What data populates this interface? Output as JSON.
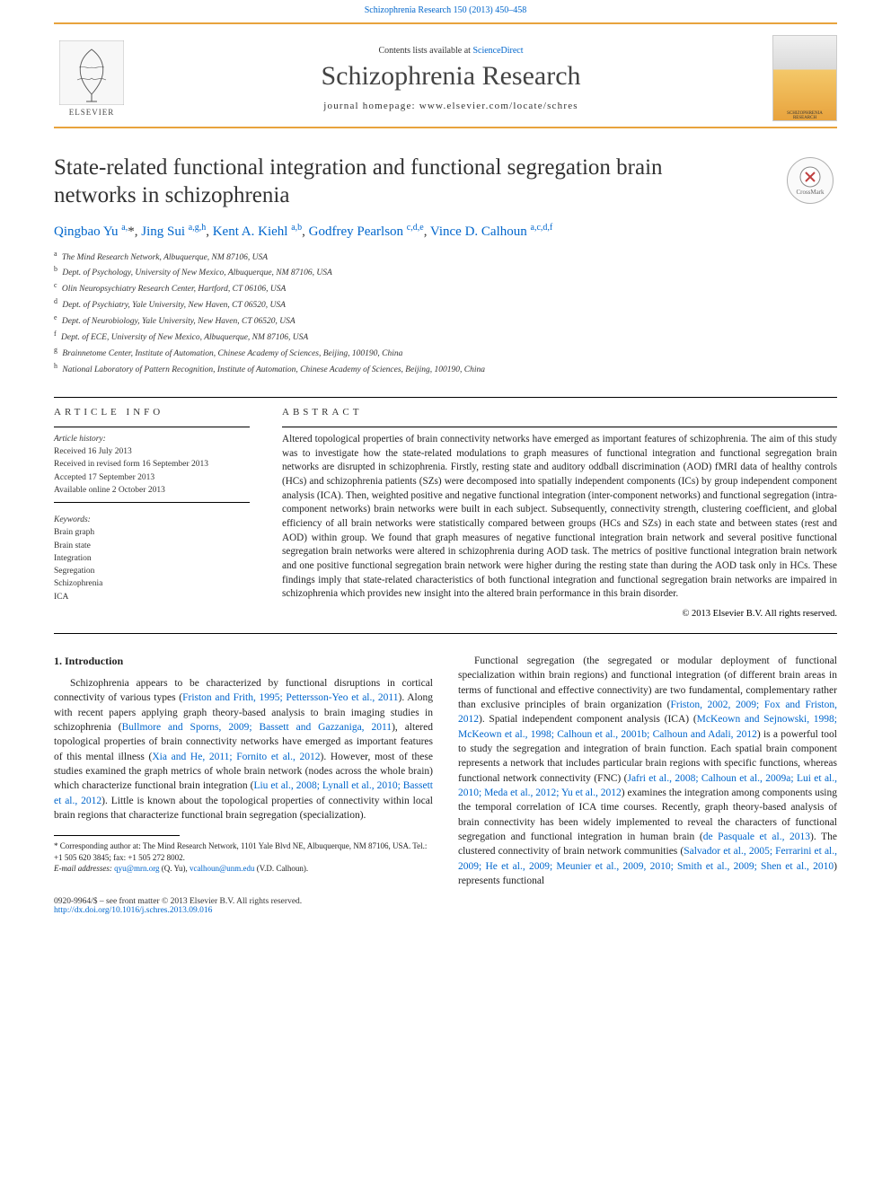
{
  "colors": {
    "link": "#0066cc",
    "accent": "#e8a33d",
    "text": "#222222",
    "muted": "#333333"
  },
  "typography": {
    "journal_name_size_pt": 30,
    "title_size_pt": 25,
    "body_size_pt": 11.5,
    "abstract_size_pt": 11.2,
    "affil_size_pt": 9.5
  },
  "header": {
    "journal_ref_link": "Schizophrenia Research 150 (2013) 450–458",
    "contents_prefix": "Contents lists available at ",
    "contents_link": "ScienceDirect",
    "journal_name": "Schizophrenia Research",
    "homepage_label": "journal homepage: www.elsevier.com/locate/schres",
    "elsevier_word": "ELSEVIER",
    "cover_top": "SCHIZOPHRENIA",
    "cover_bottom": "RESEARCH",
    "crossmark": "CrossMark"
  },
  "article": {
    "title": "State-related functional integration and functional segregation brain networks in schizophrenia",
    "authors_html": "Qingbao Yu <sup>a,</sup>*, Jing Sui <sup>a,g,h</sup>, Kent A. Kiehl <sup>a,b</sup>, Godfrey Pearlson <sup>c,d,e</sup>, Vince D. Calhoun <sup>a,c,d,f</sup>",
    "affiliations": [
      {
        "sup": "a",
        "text": "The Mind Research Network, Albuquerque, NM 87106, USA"
      },
      {
        "sup": "b",
        "text": "Dept. of Psychology, University of New Mexico, Albuquerque, NM 87106, USA"
      },
      {
        "sup": "c",
        "text": "Olin Neuropsychiatry Research Center, Hartford, CT 06106, USA"
      },
      {
        "sup": "d",
        "text": "Dept. of Psychiatry, Yale University, New Haven, CT 06520, USA"
      },
      {
        "sup": "e",
        "text": "Dept. of Neurobiology, Yale University, New Haven, CT 06520, USA"
      },
      {
        "sup": "f",
        "text": "Dept. of ECE, University of New Mexico, Albuquerque, NM 87106, USA"
      },
      {
        "sup": "g",
        "text": "Brainnetome Center, Institute of Automation, Chinese Academy of Sciences, Beijing, 100190, China"
      },
      {
        "sup": "h",
        "text": "National Laboratory of Pattern Recognition, Institute of Automation, Chinese Academy of Sciences, Beijing, 100190, China"
      }
    ]
  },
  "info": {
    "heading": "article info",
    "history_label": "Article history:",
    "history": [
      "Received 16 July 2013",
      "Received in revised form 16 September 2013",
      "Accepted 17 September 2013",
      "Available online 2 October 2013"
    ],
    "kw_label": "Keywords:",
    "keywords": [
      "Brain graph",
      "Brain state",
      "Integration",
      "Segregation",
      "Schizophrenia",
      "ICA"
    ]
  },
  "abstract": {
    "heading": "abstract",
    "text": "Altered topological properties of brain connectivity networks have emerged as important features of schizophrenia. The aim of this study was to investigate how the state-related modulations to graph measures of functional integration and functional segregation brain networks are disrupted in schizophrenia. Firstly, resting state and auditory oddball discrimination (AOD) fMRI data of healthy controls (HCs) and schizophrenia patients (SZs) were decomposed into spatially independent components (ICs) by group independent component analysis (ICA). Then, weighted positive and negative functional integration (inter-component networks) and functional segregation (intra-component networks) brain networks were built in each subject. Subsequently, connectivity strength, clustering coefficient, and global efficiency of all brain networks were statistically compared between groups (HCs and SZs) in each state and between states (rest and AOD) within group. We found that graph measures of negative functional integration brain network and several positive functional segregation brain networks were altered in schizophrenia during AOD task. The metrics of positive functional integration brain network and one positive functional segregation brain network were higher during the resting state than during the AOD task only in HCs. These findings imply that state-related characteristics of both functional integration and functional segregation brain networks are impaired in schizophrenia which provides new insight into the altered brain performance in this brain disorder.",
    "copyright": "© 2013 Elsevier B.V. All rights reserved."
  },
  "body": {
    "section_heading": "1. Introduction",
    "p1_pre": "Schizophrenia appears to be characterized by functional disruptions in cortical connectivity of various types (",
    "p1_link1": "Friston and Frith, 1995; Pettersson-Yeo et al., 2011",
    "p1_mid1": "). Along with recent papers applying graph theory-based analysis to brain imaging studies in schizophrenia (",
    "p1_link2": "Bullmore and Sporns, 2009; Bassett and Gazzaniga, 2011",
    "p1_mid2": "), altered topological properties of brain connectivity networks have emerged as important features of this mental illness (",
    "p1_link3": "Xia and He, 2011; Fornito et al., 2012",
    "p1_mid3": "). However, most of these studies examined the graph metrics of whole brain network (nodes across the whole brain) which characterize functional brain integration (",
    "p1_link4": "Liu et al., 2008; Lynall et al., 2010; Bassett et al., 2012",
    "p1_end": "). Little is known about the topological properties of connectivity within local brain regions that characterize functional brain segregation (specialization).",
    "p2_pre": "Functional segregation (the segregated or modular deployment of functional specialization within brain regions) and functional integration (of different brain areas in terms of functional and effective connectivity) are two fundamental, complementary rather than exclusive principles of brain organization (",
    "p2_link1": "Friston, 2002, 2009; Fox and Friston, 2012",
    "p2_mid1": "). Spatial independent component analysis (ICA) (",
    "p2_link2": "McKeown and Sejnowski, 1998; McKeown et al., 1998; Calhoun et al., 2001b; Calhoun and Adali, 2012",
    "p2_mid2": ") is a powerful tool to study the segregation and integration of brain function. Each spatial brain component represents a network that includes particular brain regions with specific functions, whereas functional network connectivity (FNC) (",
    "p2_link3": "Jafri et al., 2008; Calhoun et al., 2009a; Lui et al., 2010; Meda et al., 2012; Yu et al., 2012",
    "p2_mid3": ") examines the integration among components using the temporal correlation of ICA time courses. Recently, graph theory-based analysis of brain connectivity has been widely implemented to reveal the characters of functional segregation and functional integration in human brain (",
    "p2_link4": "de Pasquale et al., 2013",
    "p2_mid4": "). The clustered connectivity of brain network communities (",
    "p2_link5": "Salvador et al., 2005; Ferrarini et al., 2009; He et al., 2009; Meunier et al., 2009, 2010; Smith et al., 2009; Shen et al., 2010",
    "p2_end": ") represents functional"
  },
  "footnote": {
    "corr": "* Corresponding author at: The Mind Research Network, 1101 Yale Blvd NE, Albuquerque, NM 87106, USA. Tel.: +1 505 620 3845; fax: +1 505 272 8002.",
    "email_label": "E-mail addresses: ",
    "email1": "qyu@mrn.org",
    "email1_who": " (Q. Yu), ",
    "email2": "vcalhoun@unm.edu",
    "email2_who": " (V.D. Calhoun)."
  },
  "footer": {
    "issn_line": "0920-9964/$ – see front matter © 2013 Elsevier B.V. All rights reserved.",
    "doi": "http://dx.doi.org/10.1016/j.schres.2013.09.016"
  }
}
